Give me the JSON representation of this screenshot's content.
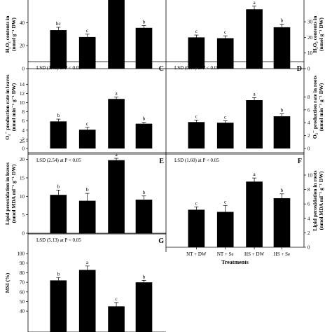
{
  "chart_data": [
    {
      "panel": "A",
      "type": "bar",
      "categories": [
        "NT + DW",
        "NT + Se",
        "HS + DW",
        "HS + Se"
      ],
      "values": [
        33.5,
        27.5,
        62,
        35.5
      ],
      "errors": [
        2.5,
        2.5,
        3,
        2
      ],
      "letters": [
        "bc",
        "c",
        "a",
        "b"
      ],
      "lsd": "",
      "ylabel_lines": [
        "H₂O₂ contents in",
        "(nmol g⁻¹ DW)"
      ],
      "ylabel_side": "left",
      "ylim": [
        0,
        60
      ],
      "yticks": [
        0,
        20,
        40
      ],
      "xlabels_visible": false,
      "title": ""
    },
    {
      "panel": "B",
      "type": "bar",
      "categories": [
        "NT + DW",
        "NT + Se",
        "HS + DW",
        "HS + Se"
      ],
      "values": [
        20,
        19.5,
        38,
        26.5
      ],
      "errors": [
        1.5,
        1.5,
        2,
        2
      ],
      "letters": [
        "c",
        "c",
        "a",
        "b"
      ],
      "lsd": "",
      "ylabel_lines": [
        "H₂O₂ contents in",
        "(nmol g⁻¹ DW)"
      ],
      "ylabel_side": "right",
      "ylim": [
        0,
        36
      ],
      "yticks": [
        0,
        10,
        20,
        30
      ],
      "xlabels_visible": false,
      "title": ""
    },
    {
      "panel": "C",
      "type": "bar",
      "categories": [
        "NT + DW",
        "NT + Se",
        "HS + DW",
        "HS + Se"
      ],
      "values": [
        5.9,
        4.1,
        10.8,
        5.4
      ],
      "errors": [
        0.5,
        0.5,
        0.4,
        0.3
      ],
      "letters": [
        "b",
        "c",
        "a",
        "b"
      ],
      "lsd": "LSD (1.45) at P < 0.05",
      "ylabel_lines": [
        "O₂⁻ production rate in leaves",
        "(nmol min⁻¹ g⁻¹ DW)"
      ],
      "ylabel_side": "left",
      "ylim": [
        0,
        14
      ],
      "yticks": [
        0,
        2,
        4,
        6,
        8,
        10,
        12,
        14
      ],
      "xlabels_visible": false,
      "title": ""
    },
    {
      "panel": "D",
      "type": "bar",
      "categories": [
        "NT + DW",
        "NT + Se",
        "HS + DW",
        "HS + Se"
      ],
      "values": [
        4.1,
        4.0,
        7.5,
        5.0
      ],
      "errors": [
        0.3,
        0.3,
        0.4,
        0.4
      ],
      "letters": [
        "c",
        "c",
        "a",
        "b"
      ],
      "lsd": "LSD (0.95) at P < 0.05",
      "ylabel_lines": [
        "O₂⁻ production rate in roots",
        "(nmol min⁻¹ g⁻¹ DW)"
      ],
      "ylabel_side": "right",
      "ylim": [
        0,
        9
      ],
      "yticks": [
        0,
        2,
        4,
        6,
        8
      ],
      "xlabels_visible": false,
      "title": ""
    },
    {
      "panel": "E",
      "type": "bar",
      "categories": [
        "NT + DW",
        "NT + Se",
        "HS + DW",
        "HS + Se"
      ],
      "values": [
        10.4,
        8.8,
        19.8,
        9.1
      ],
      "errors": [
        1.3,
        2.0,
        0.5,
        1.0
      ],
      "letters": [
        "b",
        "b",
        "a",
        "b"
      ],
      "lsd": "LSD (2.54) at P < 0.05",
      "ylabel_lines": [
        "Lipid peroxidation in leaves",
        "(nmol MDA ml⁻¹ g⁻¹ DW)"
      ],
      "ylabel_side": "left",
      "ylim": [
        0,
        25
      ],
      "yticks": [
        0,
        5,
        10,
        15,
        20,
        25
      ],
      "xlabels_visible": false,
      "title": ""
    },
    {
      "panel": "F",
      "type": "bar",
      "categories": [
        "NT + DW",
        "NT + Se",
        "HS + DW",
        "HS + Se"
      ],
      "values": [
        5.2,
        4.9,
        9.1,
        6.8
      ],
      "errors": [
        0.4,
        0.9,
        0.5,
        0.6
      ],
      "letters": [
        "c",
        "c",
        "a",
        "b"
      ],
      "lsd": "LSD (1.60) at P < 0.05",
      "ylabel_lines": [
        "Lipid peroxidation in roots",
        "(nmol MDA ml⁻¹ g⁻¹ DW)"
      ],
      "ylabel_side": "right",
      "ylim": [
        0,
        12
      ],
      "yticks": [
        0,
        2,
        4,
        6,
        8,
        10
      ],
      "xlabels_visible": true,
      "xlabel": "Treatments",
      "title": ""
    },
    {
      "panel": "G",
      "type": "bar",
      "categories": [
        "NT + DW",
        "NT + Se",
        "HS + DW",
        "HS + Se"
      ],
      "values": [
        72,
        83,
        45,
        70
      ],
      "errors": [
        3,
        4,
        4,
        2
      ],
      "letters": [
        "b",
        "a",
        "c",
        "b"
      ],
      "lsd": "LSD (5.13) at P < 0.05",
      "ylabel_lines": [
        "MSI (%)"
      ],
      "ylabel_side": "left",
      "ylim": [
        0,
        100
      ],
      "yticks": [
        40,
        50,
        60,
        70,
        80,
        90,
        100
      ],
      "xlabels_visible": false,
      "title": ""
    }
  ]
}
